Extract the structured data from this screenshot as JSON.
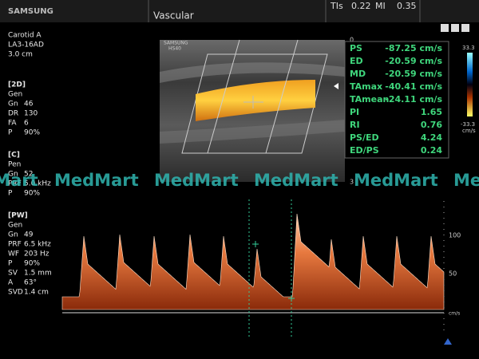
{
  "header": {
    "brand": "SAMSUNG",
    "preset": "Vascular",
    "tis_label": "TIs",
    "tis_value": "0.22",
    "mi_label": "MI",
    "mi_value": "0.35"
  },
  "probe": {
    "exam": "Carotid A",
    "transducer": "LA3-16AD",
    "depth": "3.0 cm"
  },
  "settings": [
    {
      "title": "[2D]",
      "lines": [
        {
          "label": "Gen"
        },
        {
          "label": "Gn",
          "value": "46"
        },
        {
          "label": "DR",
          "value": "130"
        },
        {
          "label": "FA",
          "value": "6"
        },
        {
          "label": "P",
          "value": "90%"
        }
      ]
    },
    {
      "title": "[C]",
      "lines": [
        {
          "label": "Pen"
        },
        {
          "label": "Gn",
          "value": "52"
        },
        {
          "label": "PRF",
          "value": "5.0 kHz"
        },
        {
          "label": "P",
          "value": "90%"
        }
      ]
    },
    {
      "title": "[PW]",
      "lines": [
        {
          "label": "Gen"
        },
        {
          "label": "Gn",
          "value": "49"
        },
        {
          "label": "PRF",
          "value": "6.5 kHz"
        },
        {
          "label": "WF",
          "value": "203 Hz"
        },
        {
          "label": "P",
          "value": "90%"
        },
        {
          "label": "SV",
          "value": "1.5 mm"
        },
        {
          "label": "A",
          "value": "63°"
        },
        {
          "label": "SVD",
          "value": "1.4 cm"
        }
      ]
    }
  ],
  "image": {
    "brand": "SAMSUNG",
    "model": "HS40",
    "depth_top": "0",
    "depth_bottom": "3"
  },
  "measurements": [
    {
      "label": "PS",
      "value": "-87.25 cm/s"
    },
    {
      "label": "ED",
      "value": "-20.59 cm/s"
    },
    {
      "label": "MD",
      "value": "-20.59 cm/s"
    },
    {
      "label": "TAmax",
      "value": "-40.41 cm/s"
    },
    {
      "label": "TAmean",
      "value": "-24.11 cm/s"
    },
    {
      "label": "PI",
      "value": "1.65"
    },
    {
      "label": "RI",
      "value": "0.76"
    },
    {
      "label": "PS/ED",
      "value": "4.24"
    },
    {
      "label": "ED/PS",
      "value": "0.24"
    }
  ],
  "color_scale": {
    "max": "33.3",
    "min": "-33.3",
    "unit": "cm/s"
  },
  "spectral_scale": {
    "ticks": [
      "100",
      "50"
    ],
    "unit": "cm/s"
  },
  "watermark": "MedMart"
}
